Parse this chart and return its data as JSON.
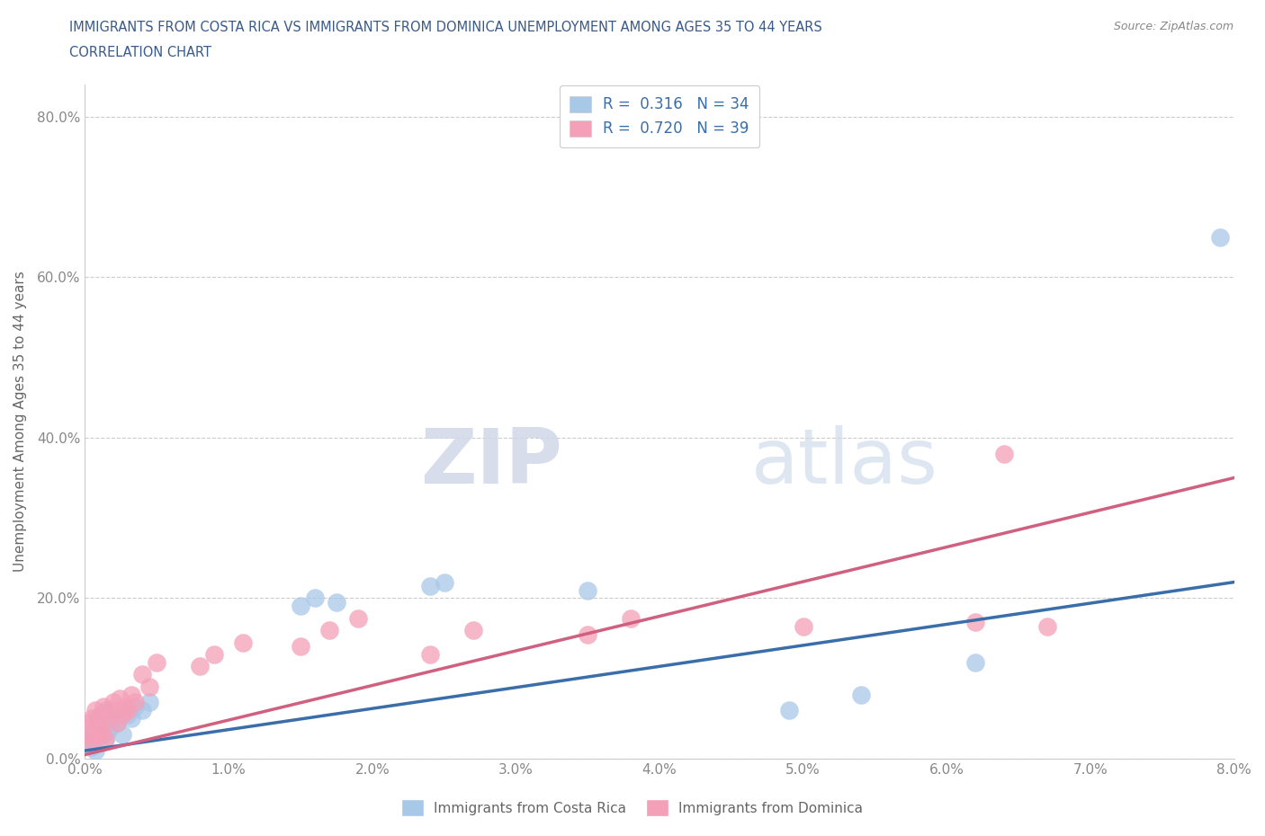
{
  "title_line1": "IMMIGRANTS FROM COSTA RICA VS IMMIGRANTS FROM DOMINICA UNEMPLOYMENT AMONG AGES 35 TO 44 YEARS",
  "title_line2": "CORRELATION CHART",
  "source": "Source: ZipAtlas.com",
  "ylabel": "Unemployment Among Ages 35 to 44 years",
  "xlim": [
    0.0,
    0.08
  ],
  "ylim": [
    0.0,
    0.84
  ],
  "xticks": [
    0.0,
    0.01,
    0.02,
    0.03,
    0.04,
    0.05,
    0.06,
    0.07,
    0.08
  ],
  "yticks": [
    0.0,
    0.2,
    0.4,
    0.6,
    0.8
  ],
  "ytick_labels": [
    "0.0%",
    "20.0%",
    "40.0%",
    "60.0%",
    "80.0%"
  ],
  "xtick_labels": [
    "0.0%",
    "1.0%",
    "2.0%",
    "3.0%",
    "4.0%",
    "5.0%",
    "6.0%",
    "7.0%",
    "8.0%"
  ],
  "legend_label1": "Immigrants from Costa Rica",
  "legend_label2": "Immigrants from Dominica",
  "color_blue": "#a8c8e8",
  "color_pink": "#f4a0b8",
  "color_blue_line": "#3a6eaa",
  "color_pink_line": "#d06080",
  "color_title": "#3a6eaa",
  "watermark_zip": "ZIP",
  "watermark_atlas": "atlas",
  "blue_x": [
    0.0002,
    0.0003,
    0.0004,
    0.0005,
    0.0006,
    0.0007,
    0.0008,
    0.001,
    0.0012,
    0.0013,
    0.0014,
    0.0015,
    0.0016,
    0.0018,
    0.002,
    0.0022,
    0.0025,
    0.0026,
    0.0028,
    0.003,
    0.0032,
    0.0035,
    0.004,
    0.0045,
    0.015,
    0.016,
    0.0175,
    0.024,
    0.025,
    0.035,
    0.049,
    0.054,
    0.062,
    0.079
  ],
  "blue_y": [
    0.02,
    0.025,
    0.03,
    0.015,
    0.04,
    0.01,
    0.05,
    0.045,
    0.03,
    0.055,
    0.025,
    0.06,
    0.035,
    0.04,
    0.05,
    0.045,
    0.055,
    0.03,
    0.06,
    0.055,
    0.05,
    0.065,
    0.06,
    0.07,
    0.19,
    0.2,
    0.195,
    0.215,
    0.22,
    0.21,
    0.06,
    0.08,
    0.12,
    0.65
  ],
  "pink_x": [
    0.0002,
    0.0003,
    0.0004,
    0.0005,
    0.0006,
    0.0007,
    0.0009,
    0.001,
    0.0011,
    0.0012,
    0.0013,
    0.0014,
    0.0016,
    0.0018,
    0.002,
    0.0022,
    0.0024,
    0.0026,
    0.0028,
    0.003,
    0.0032,
    0.0035,
    0.004,
    0.0045,
    0.005,
    0.008,
    0.009,
    0.011,
    0.015,
    0.017,
    0.019,
    0.024,
    0.027,
    0.035,
    0.038,
    0.05,
    0.062,
    0.064,
    0.067
  ],
  "pink_y": [
    0.03,
    0.045,
    0.02,
    0.05,
    0.025,
    0.06,
    0.04,
    0.035,
    0.055,
    0.03,
    0.065,
    0.025,
    0.05,
    0.06,
    0.07,
    0.045,
    0.075,
    0.055,
    0.065,
    0.06,
    0.08,
    0.07,
    0.105,
    0.09,
    0.12,
    0.115,
    0.13,
    0.145,
    0.14,
    0.16,
    0.175,
    0.13,
    0.16,
    0.155,
    0.175,
    0.165,
    0.17,
    0.38,
    0.165
  ],
  "blue_line_x": [
    0.0,
    0.08
  ],
  "blue_line_y": [
    0.01,
    0.22
  ],
  "pink_line_x": [
    0.0,
    0.08
  ],
  "pink_line_y": [
    0.005,
    0.35
  ]
}
